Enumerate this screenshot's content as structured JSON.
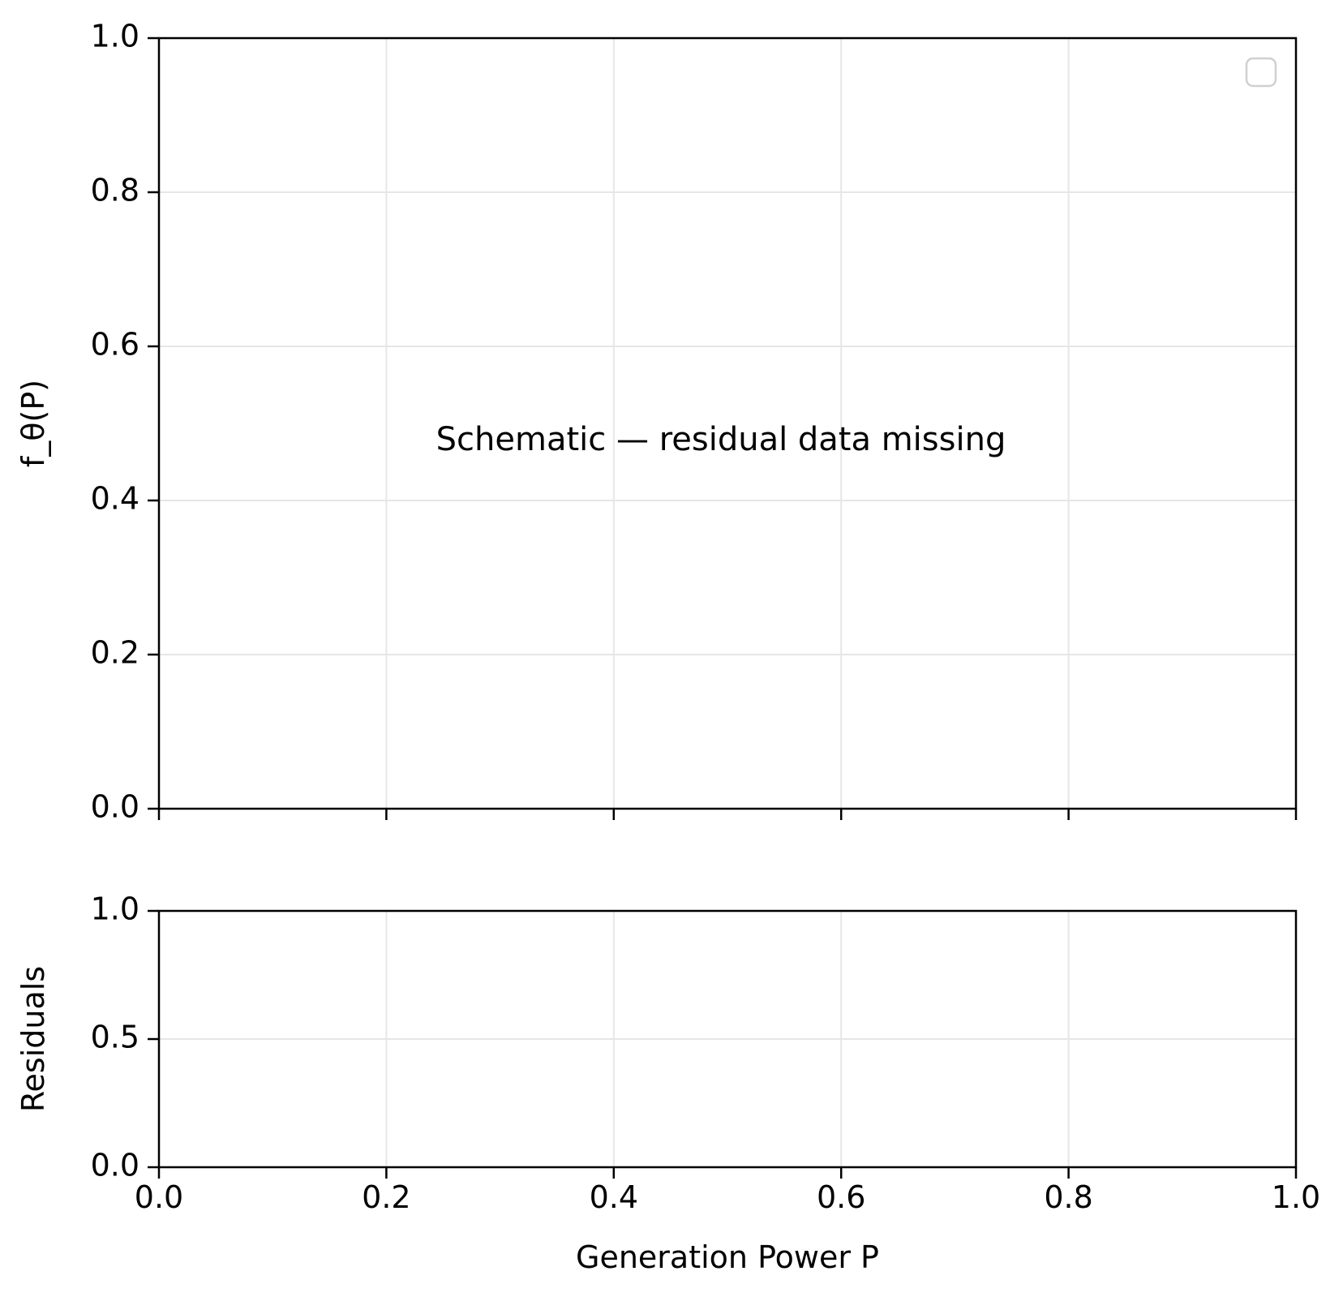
{
  "chart_data": [
    {
      "type": "line",
      "panel": "main",
      "title": "",
      "xlabel": "",
      "ylabel": "f_θ(P)",
      "xlim": [
        0.0,
        1.0
      ],
      "ylim": [
        0.0,
        1.0
      ],
      "xticks": [
        0.0,
        0.2,
        0.4,
        0.6,
        0.8,
        1.0
      ],
      "yticks": [
        0.0,
        0.2,
        0.4,
        0.6,
        0.8,
        1.0
      ],
      "ytick_labels": [
        "0.0",
        "0.2",
        "0.4",
        "0.6",
        "0.8",
        "1.0"
      ],
      "show_xtick_labels": false,
      "grid": true,
      "legend": {
        "placement": "top-right",
        "entries": []
      },
      "series": [],
      "annotation": {
        "text": "Schematic — residual data missing",
        "x": 0.5,
        "y": 0.5
      }
    },
    {
      "type": "line",
      "panel": "residuals",
      "title": "",
      "xlabel": "Generation Power P",
      "ylabel": "Residuals",
      "xlim": [
        0.0,
        1.0
      ],
      "ylim": [
        0.0,
        1.0
      ],
      "xticks": [
        0.0,
        0.2,
        0.4,
        0.6,
        0.8,
        1.0
      ],
      "xtick_labels": [
        "0.0",
        "0.2",
        "0.4",
        "0.6",
        "0.8",
        "1.0"
      ],
      "yticks": [
        0.0,
        0.5,
        1.0
      ],
      "ytick_labels": [
        "0.0",
        "0.5",
        "1.0"
      ],
      "grid": true,
      "series": []
    }
  ],
  "colors": {
    "grid": "#e6e6e6",
    "spine": "#000000",
    "legend_border": "#d0d0d0"
  }
}
